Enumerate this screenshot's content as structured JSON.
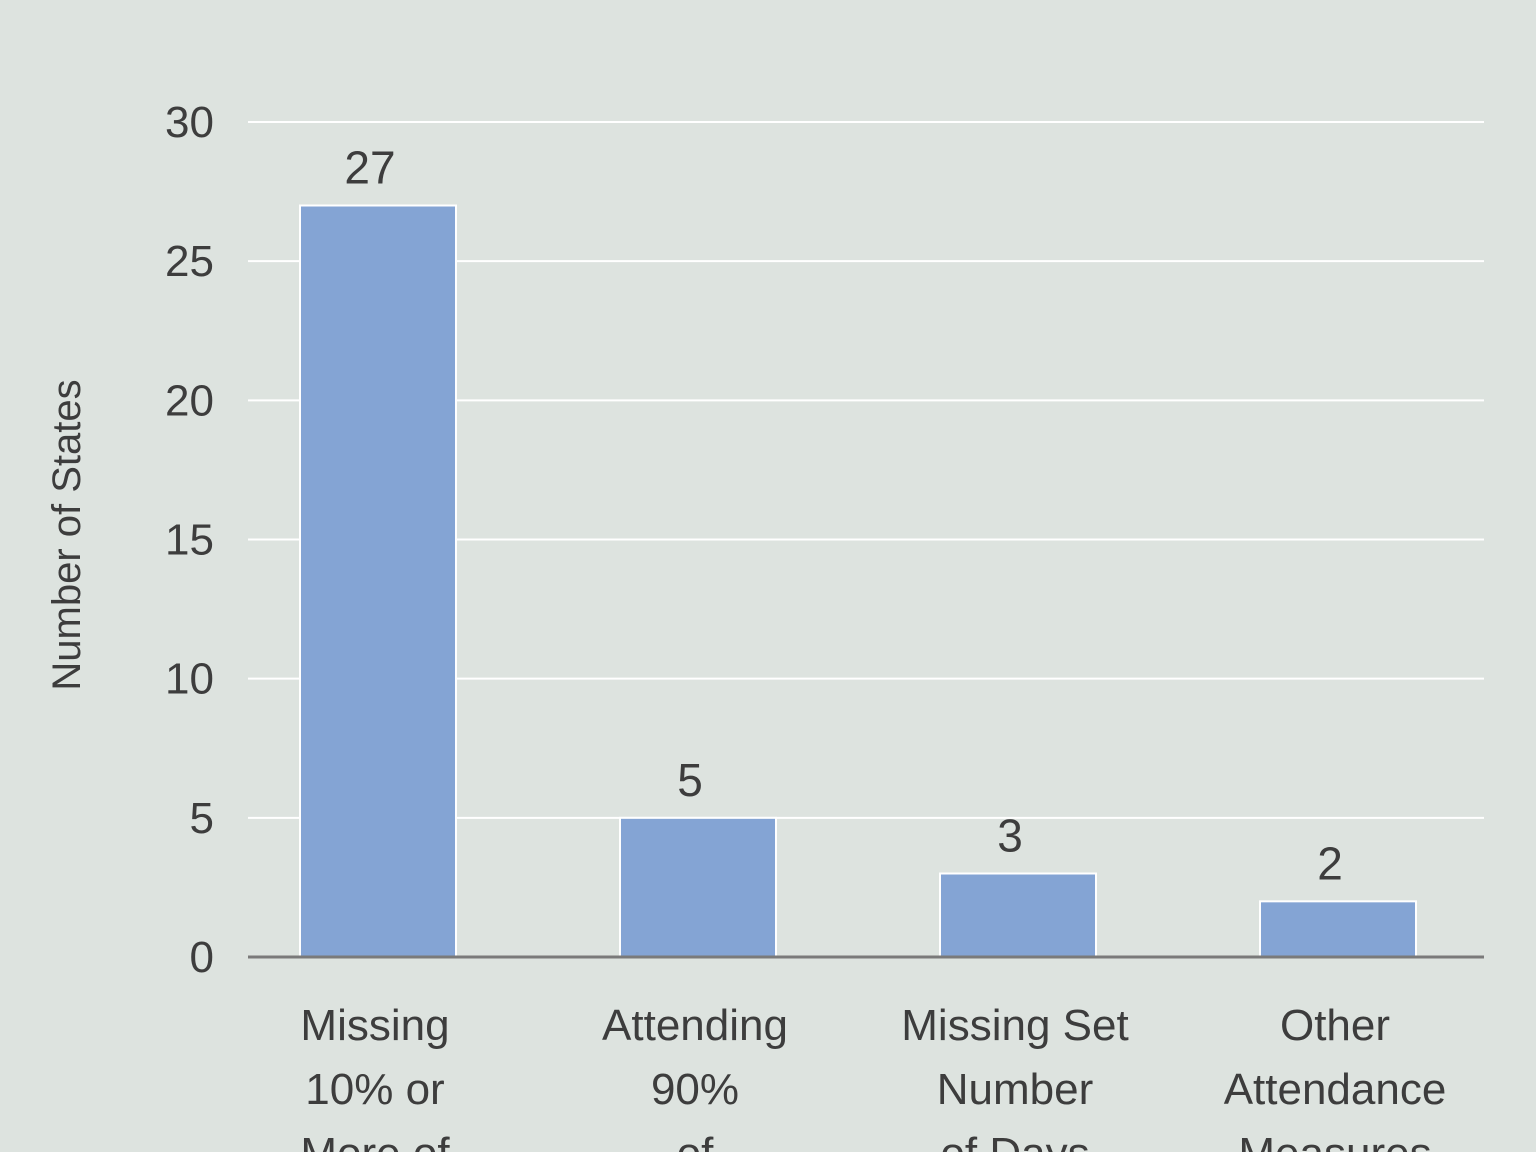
{
  "chart_data": {
    "type": "bar",
    "title": "",
    "xlabel": "",
    "ylabel": "Number of States",
    "ylim": [
      0,
      30
    ],
    "yticks": [
      0,
      5,
      10,
      15,
      20,
      25,
      30
    ],
    "grid": true,
    "categories": [
      [
        "Missing",
        "10% or",
        "More of"
      ],
      [
        "Attending",
        "90%",
        "of"
      ],
      [
        "Missing Set",
        "Number",
        "of Days"
      ],
      [
        "Other",
        "Attendance",
        "Measures"
      ]
    ],
    "values": [
      27,
      5,
      3,
      2
    ],
    "colors": {
      "bar": "#84a4d4",
      "bar_edge": "#ffffff",
      "grid": "#ffffff",
      "axis": "#7a7a7a",
      "text": "#3d3d3d",
      "background": "#dde3df"
    }
  }
}
